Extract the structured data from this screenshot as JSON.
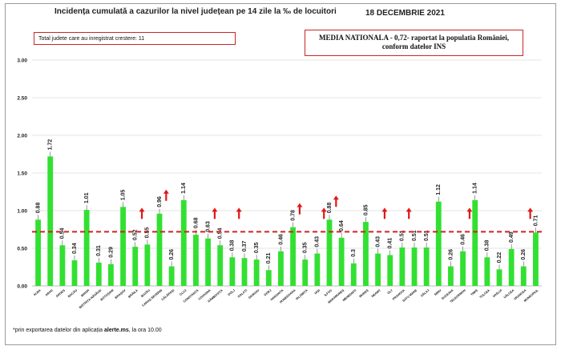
{
  "title": "Incidența cumulată a cazurilor la nivel județean pe 14 zile la ‰ de locuitori",
  "date": "18 DECEMBRIE 2021",
  "total_box": "Total judete care au inregistrat crestere: 11",
  "national_box": {
    "line1": "MEDIA NATIONALA - 0,72-  raportat la populatia României,",
    "line2": "conform datelor INS"
  },
  "footnote": {
    "prefix": "*prin exportarea datelor din aplicația ",
    "bold": "alerte.ms",
    "suffix": ", la ora 10.00"
  },
  "colors": {
    "bar": "#32e032",
    "reference_line": "#d32020",
    "arrow": "#e01818",
    "grid": "#e4e4e4"
  },
  "chart_data": {
    "type": "bar",
    "categories": [
      "ALBA",
      "ARAD",
      "ARGES",
      "BACĂU",
      "BIHOR",
      "BISTRIȚA-NĂSĂUD",
      "BOTOȘANI",
      "BRAȘOV",
      "BRĂILA",
      "BUZĂU",
      "CARAȘ-SEVERIN",
      "CĂLĂRAȘI",
      "CLUJ",
      "CONSTANȚA",
      "COVASNA",
      "DÂMBOVIȚA",
      "DOLJ",
      "GALAȚI",
      "GIURGIU",
      "GORJ",
      "HARGHITA",
      "HUNEDOARA",
      "IALOMIȚA",
      "IAȘI",
      "ILFOV",
      "MARAMUREȘ",
      "MEHEDINȚI",
      "MUREȘ",
      "NEAMȚ",
      "OLT",
      "PRAHOVA",
      "SATU MARE",
      "SĂLAJ",
      "SIBIU",
      "SUCEAVA",
      "TELEORMAN",
      "TIMIȘ",
      "TULCEA",
      "VASLUI",
      "VÂLCEA",
      "VRANCEA",
      "MUNICIPIUL"
    ],
    "values": [
      0.88,
      1.72,
      0.54,
      0.34,
      1.01,
      0.31,
      0.29,
      1.05,
      0.52,
      0.55,
      0.96,
      0.26,
      1.14,
      0.68,
      0.63,
      0.54,
      0.38,
      0.37,
      0.35,
      0.21,
      0.46,
      0.78,
      0.35,
      0.43,
      0.88,
      0.64,
      0.3,
      0.85,
      0.43,
      0.41,
      0.51,
      0.51,
      0.51,
      1.12,
      0.26,
      0.46,
      1.14,
      0.38,
      0.22,
      0.49,
      0.26,
      0.71
    ],
    "value_labels": [
      "0.88",
      "1.72",
      "0.54",
      "0.34",
      "1.01",
      "0.31",
      "0.29",
      "1.05",
      "0.52",
      "0.55",
      "0.96",
      "0.26",
      "1.14",
      "0.68",
      "0.63",
      "0.54",
      "0.38",
      "0.37",
      "0.35",
      "0.21",
      "0.46",
      "0.78",
      "0.35",
      "0.43",
      "0.88",
      "0.64",
      "0.3",
      "0.85",
      "0.43",
      "0.41",
      "0.51",
      "0.51",
      "0.51",
      "1.12",
      "0.26",
      "0.46",
      "1.14",
      "0.38",
      "0.22",
      "0.49",
      "0.26",
      "0.71"
    ],
    "increase_arrows": [
      8,
      10,
      14,
      16,
      21,
      23,
      24,
      28,
      30,
      35,
      40
    ],
    "reference_value": 0.72,
    "ylim": [
      0,
      3.0
    ],
    "yticks": [
      "0.00",
      "0.50",
      "1.00",
      "1.50",
      "2.00",
      "2.50",
      "3.00"
    ],
    "grid": true,
    "xlabel": "",
    "ylabel": ""
  }
}
